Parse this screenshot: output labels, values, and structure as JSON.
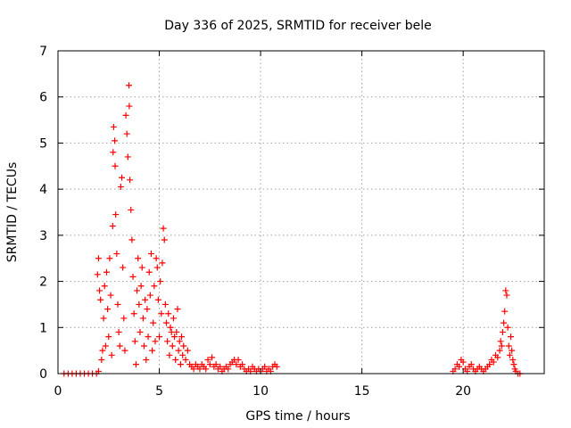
{
  "chart_data": {
    "type": "scatter",
    "title": "Day 336 of 2025, SRMTID for receiver bele",
    "xlabel": "GPS time / hours",
    "ylabel": "SRMTID / TECUs",
    "xlim": [
      0,
      24
    ],
    "ylim": [
      0,
      7
    ],
    "xticks": [
      0,
      5,
      10,
      15,
      20
    ],
    "yticks": [
      0,
      1,
      2,
      3,
      4,
      5,
      6,
      7
    ],
    "grid": true,
    "marker": "+",
    "color": "#ff0000",
    "series": [
      {
        "name": "SRMTID",
        "points": [
          [
            0.3,
            0
          ],
          [
            0.5,
            0
          ],
          [
            0.7,
            0
          ],
          [
            0.9,
            0
          ],
          [
            1.1,
            0
          ],
          [
            1.3,
            0
          ],
          [
            1.5,
            0
          ],
          [
            1.7,
            0
          ],
          [
            1.9,
            0
          ],
          [
            2.0,
            0.05
          ],
          [
            1.95,
            2.15
          ],
          [
            2.0,
            2.5
          ],
          [
            2.05,
            1.8
          ],
          [
            2.1,
            1.6
          ],
          [
            2.15,
            0.3
          ],
          [
            2.2,
            0.5
          ],
          [
            2.25,
            1.2
          ],
          [
            2.3,
            1.9
          ],
          [
            2.35,
            0.6
          ],
          [
            2.4,
            2.2
          ],
          [
            2.45,
            1.4
          ],
          [
            2.5,
            0.8
          ],
          [
            2.55,
            2.5
          ],
          [
            2.6,
            1.7
          ],
          [
            2.65,
            0.4
          ],
          [
            2.7,
            3.2
          ],
          [
            2.72,
            4.8
          ],
          [
            2.75,
            5.35
          ],
          [
            2.8,
            5.05
          ],
          [
            2.82,
            4.5
          ],
          [
            2.85,
            3.45
          ],
          [
            2.9,
            2.6
          ],
          [
            2.95,
            1.5
          ],
          [
            3.0,
            0.9
          ],
          [
            3.05,
            0.6
          ],
          [
            3.1,
            4.05
          ],
          [
            3.15,
            4.25
          ],
          [
            3.2,
            2.3
          ],
          [
            3.25,
            1.2
          ],
          [
            3.3,
            0.5
          ],
          [
            3.35,
            5.6
          ],
          [
            3.4,
            5.2
          ],
          [
            3.45,
            4.7
          ],
          [
            3.5,
            6.25
          ],
          [
            3.52,
            5.8
          ],
          [
            3.55,
            4.2
          ],
          [
            3.6,
            3.55
          ],
          [
            3.65,
            2.9
          ],
          [
            3.7,
            2.1
          ],
          [
            3.75,
            1.3
          ],
          [
            3.8,
            0.7
          ],
          [
            3.85,
            0.2
          ],
          [
            3.9,
            1.8
          ],
          [
            3.95,
            2.5
          ],
          [
            4.0,
            1.5
          ],
          [
            4.05,
            0.9
          ],
          [
            4.1,
            1.9
          ],
          [
            4.15,
            2.3
          ],
          [
            4.2,
            1.2
          ],
          [
            4.25,
            0.6
          ],
          [
            4.3,
            1.6
          ],
          [
            4.35,
            0.3
          ],
          [
            4.4,
            1.4
          ],
          [
            4.45,
            0.8
          ],
          [
            4.5,
            2.2
          ],
          [
            4.55,
            1.7
          ],
          [
            4.6,
            2.6
          ],
          [
            4.65,
            0.5
          ],
          [
            4.7,
            1.1
          ],
          [
            4.75,
            1.9
          ],
          [
            4.8,
            0.7
          ],
          [
            4.85,
            2.5
          ],
          [
            4.9,
            2.3
          ],
          [
            4.95,
            1.6
          ],
          [
            5.0,
            0.8
          ],
          [
            5.05,
            2.0
          ],
          [
            5.1,
            1.3
          ],
          [
            5.15,
            2.4
          ],
          [
            5.2,
            3.15
          ],
          [
            5.25,
            2.9
          ],
          [
            5.3,
            1.5
          ],
          [
            5.35,
            1.1
          ],
          [
            5.4,
            0.7
          ],
          [
            5.45,
            1.3
          ],
          [
            5.5,
            0.4
          ],
          [
            5.55,
            1.0
          ],
          [
            5.6,
            0.9
          ],
          [
            5.65,
            0.6
          ],
          [
            5.7,
            1.2
          ],
          [
            5.75,
            0.8
          ],
          [
            5.8,
            0.3
          ],
          [
            5.85,
            0.9
          ],
          [
            5.9,
            1.4
          ],
          [
            5.95,
            0.5
          ],
          [
            6.0,
            0.7
          ],
          [
            6.05,
            0.2
          ],
          [
            6.1,
            0.8
          ],
          [
            6.15,
            0.4
          ],
          [
            6.2,
            0.6
          ],
          [
            6.3,
            0.3
          ],
          [
            6.4,
            0.5
          ],
          [
            6.5,
            0.2
          ],
          [
            6.6,
            0.15
          ],
          [
            6.7,
            0.1
          ],
          [
            6.8,
            0.2
          ],
          [
            6.9,
            0.15
          ],
          [
            7.0,
            0.1
          ],
          [
            7.1,
            0.2
          ],
          [
            7.2,
            0.15
          ],
          [
            7.3,
            0.1
          ],
          [
            7.4,
            0.3
          ],
          [
            7.5,
            0.2
          ],
          [
            7.6,
            0.35
          ],
          [
            7.7,
            0.15
          ],
          [
            7.8,
            0.2
          ],
          [
            7.9,
            0.1
          ],
          [
            8.0,
            0.15
          ],
          [
            8.1,
            0.05
          ],
          [
            8.2,
            0.1
          ],
          [
            8.3,
            0.15
          ],
          [
            8.4,
            0.1
          ],
          [
            8.5,
            0.2
          ],
          [
            8.6,
            0.25
          ],
          [
            8.7,
            0.3
          ],
          [
            8.8,
            0.2
          ],
          [
            8.9,
            0.3
          ],
          [
            9.0,
            0.15
          ],
          [
            9.1,
            0.2
          ],
          [
            9.2,
            0.1
          ],
          [
            9.3,
            0.05
          ],
          [
            9.4,
            0.1
          ],
          [
            9.5,
            0.05
          ],
          [
            9.6,
            0.15
          ],
          [
            9.7,
            0.1
          ],
          [
            9.8,
            0.05
          ],
          [
            9.9,
            0.1
          ],
          [
            10.0,
            0.05
          ],
          [
            10.1,
            0.1
          ],
          [
            10.2,
            0.15
          ],
          [
            10.3,
            0.05
          ],
          [
            10.4,
            0.1
          ],
          [
            10.5,
            0.05
          ],
          [
            10.6,
            0.15
          ],
          [
            10.7,
            0.2
          ],
          [
            10.8,
            0.15
          ],
          [
            19.5,
            0.05
          ],
          [
            19.6,
            0.1
          ],
          [
            19.7,
            0.2
          ],
          [
            19.8,
            0.15
          ],
          [
            19.9,
            0.3
          ],
          [
            20.0,
            0.25
          ],
          [
            20.1,
            0.1
          ],
          [
            20.2,
            0.05
          ],
          [
            20.3,
            0.15
          ],
          [
            20.4,
            0.2
          ],
          [
            20.5,
            0.1
          ],
          [
            20.6,
            0.05
          ],
          [
            20.7,
            0.1
          ],
          [
            20.8,
            0.15
          ],
          [
            20.9,
            0.1
          ],
          [
            21.0,
            0.05
          ],
          [
            21.1,
            0.1
          ],
          [
            21.2,
            0.15
          ],
          [
            21.3,
            0.2
          ],
          [
            21.4,
            0.3
          ],
          [
            21.5,
            0.25
          ],
          [
            21.6,
            0.4
          ],
          [
            21.7,
            0.35
          ],
          [
            21.8,
            0.5
          ],
          [
            21.85,
            0.7
          ],
          [
            21.9,
            0.6
          ],
          [
            21.95,
            0.9
          ],
          [
            22.0,
            1.1
          ],
          [
            22.05,
            1.35
          ],
          [
            22.1,
            1.8
          ],
          [
            22.15,
            1.7
          ],
          [
            22.2,
            1.0
          ],
          [
            22.25,
            0.6
          ],
          [
            22.3,
            0.4
          ],
          [
            22.35,
            0.8
          ],
          [
            22.4,
            0.5
          ],
          [
            22.45,
            0.3
          ],
          [
            22.5,
            0.2
          ],
          [
            22.55,
            0.1
          ],
          [
            22.6,
            0.05
          ],
          [
            22.7,
            0
          ],
          [
            22.8,
            0
          ]
        ]
      }
    ]
  }
}
